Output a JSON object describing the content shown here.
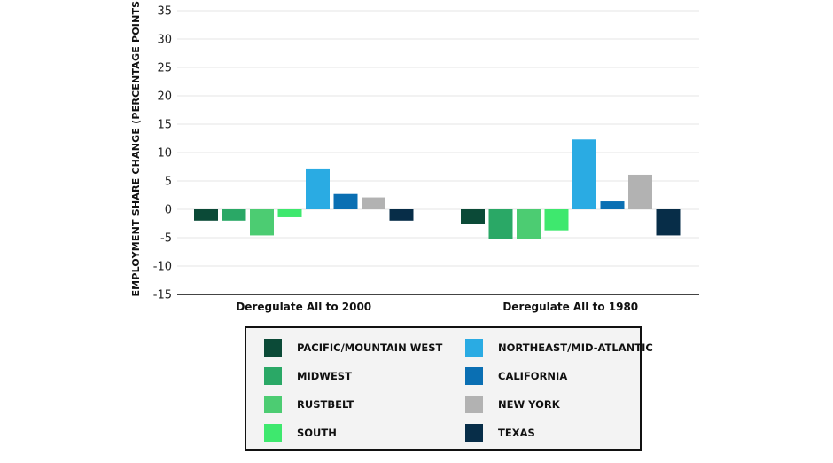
{
  "chart_data": {
    "type": "bar",
    "title": "",
    "xlabel": "",
    "ylabel": "EMPLOYMENT SHARE CHANGE (PERCENTAGE POINTS)",
    "ylim": [
      -15,
      35
    ],
    "yticks": [
      35,
      30,
      25,
      20,
      15,
      10,
      5,
      0,
      -5,
      -10,
      -15
    ],
    "ytick_labels": [
      "35",
      "30",
      "25",
      "20",
      "15",
      "10",
      "5",
      "0",
      "-5",
      "-10",
      "-15"
    ],
    "grid": true,
    "legend_position": "bottom",
    "categories": [
      "Deregulate All to 2000",
      "Deregulate All to 1980"
    ],
    "series": [
      {
        "name": "PACIFIC/MOUNTAIN WEST",
        "color": "#0b4a37",
        "values": [
          -2.0,
          -2.5
        ]
      },
      {
        "name": "MIDWEST",
        "color": "#2aa866",
        "values": [
          -2.0,
          -5.3
        ]
      },
      {
        "name": "RUSTBELT",
        "color": "#4ccc72",
        "values": [
          -4.6,
          -5.3
        ]
      },
      {
        "name": "SOUTH",
        "color": "#3ee86e",
        "values": [
          -1.4,
          -3.7
        ]
      },
      {
        "name": "NORTHEAST/MID-ATLANTIC",
        "color": "#2aabe3",
        "values": [
          7.2,
          12.3
        ]
      },
      {
        "name": "CALIFORNIA",
        "color": "#0a6fb3",
        "values": [
          2.7,
          1.4
        ]
      },
      {
        "name": "NEW YORK",
        "color": "#b2b2b2",
        "values": [
          2.1,
          6.1
        ]
      },
      {
        "name": "TEXAS",
        "color": "#072d48",
        "values": [
          -2.0,
          -4.6
        ]
      }
    ]
  }
}
